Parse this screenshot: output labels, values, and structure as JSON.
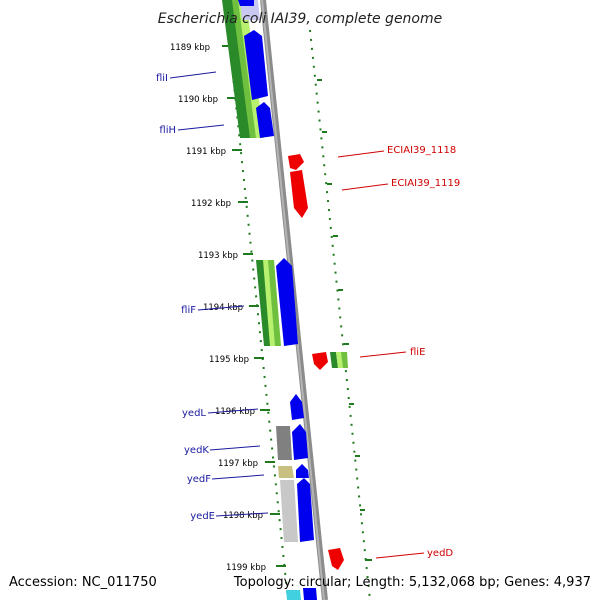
{
  "title": "Escherichia coli IAI39, complete genome",
  "footer": {
    "accession": "Accession: NC_011750",
    "summary": "Topology: circular; Length: 5,132,068 bp; Genes: 4,937"
  },
  "ticks": [
    {
      "label": "1189 kbp"
    },
    {
      "label": "1190 kbp"
    },
    {
      "label": "1191 kbp"
    },
    {
      "label": "1192 kbp"
    },
    {
      "label": "1193 kbp"
    },
    {
      "label": "1194 kbp"
    },
    {
      "label": "1195 kbp"
    },
    {
      "label": "1196 kbp"
    },
    {
      "label": "1197 kbp"
    },
    {
      "label": "1198 kbp"
    },
    {
      "label": "1199 kbp"
    }
  ],
  "left_labels": [
    "fliI",
    "fliH",
    "fliF",
    "yedL",
    "yedK",
    "yedF",
    "yedE"
  ],
  "right_labels": [
    "ECIAI39_1118",
    "ECIAI39_1119",
    "fliE",
    "yedD"
  ],
  "colors": {
    "left_label": "#1a1aa0",
    "right_label": "#d00000",
    "backbone": "#8c8c8c",
    "tick_green": "#1f7a1f",
    "gene_blue": "#0000ee",
    "gene_red": "#ee0000",
    "gene_dark_green": "#2a8a2a",
    "gene_light_green": "#b8f070",
    "gene_gray": "#808080",
    "gene_light_gray": "#c8c8c8",
    "gene_khaki": "#c8c080",
    "gene_cyan": "#40d0e0"
  }
}
